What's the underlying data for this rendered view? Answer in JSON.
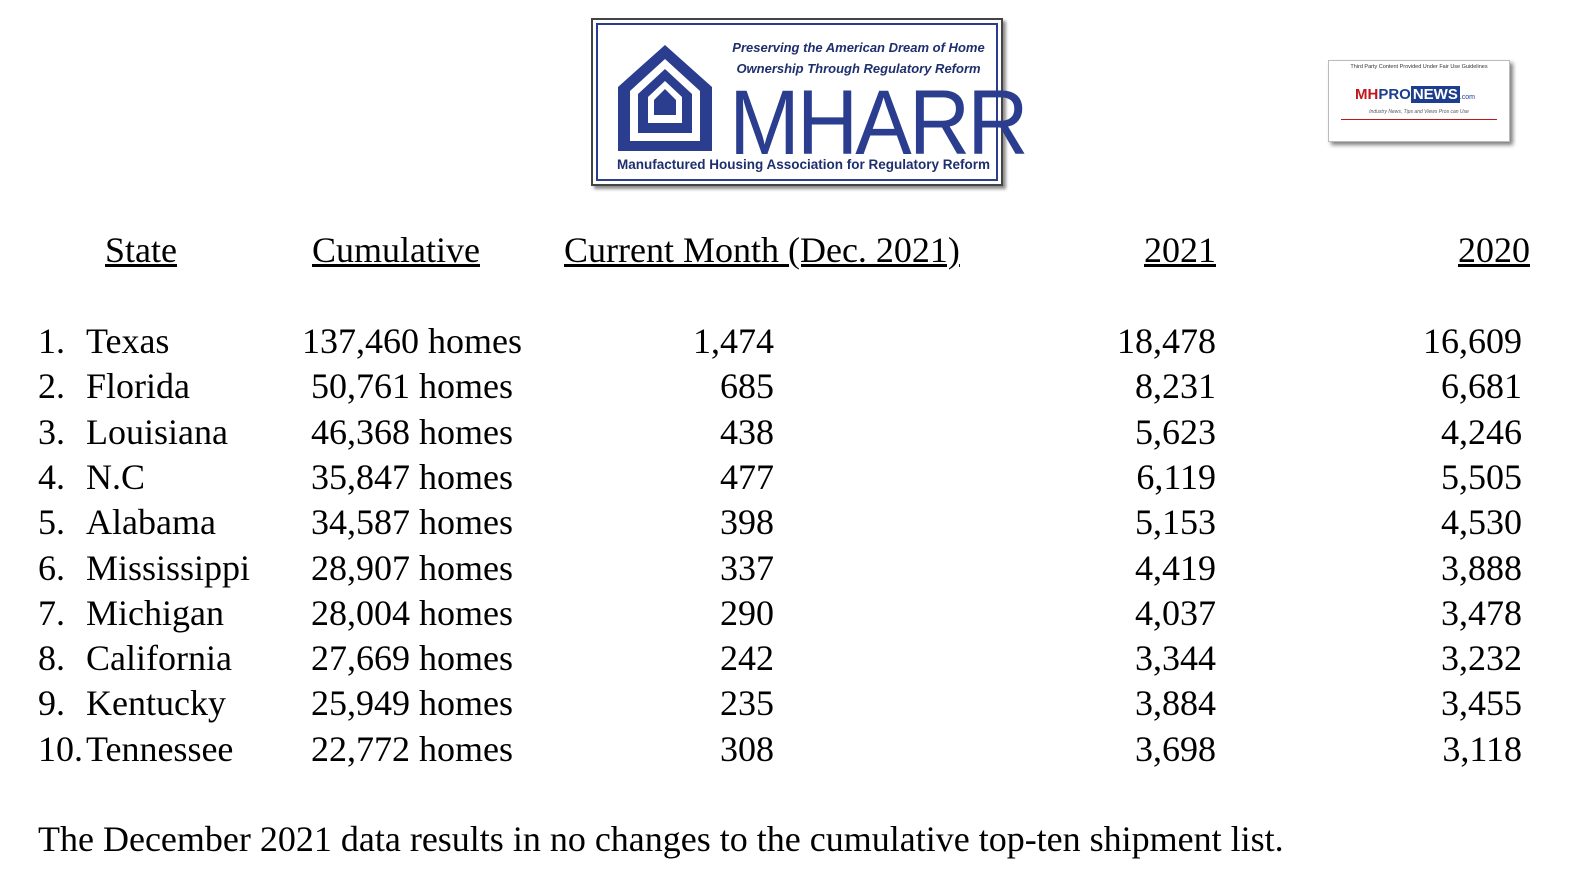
{
  "logo": {
    "tagline": "Preserving the American Dream of Home\nOwnership Through Regulatory Reform",
    "wordmark": "MHARR",
    "full_name": "Manufactured Housing Association for Regulatory Reform",
    "brand_color": "#2a3d8f",
    "icon": "house-icon"
  },
  "badge": {
    "fair_use": "Third Party Content Provided Under Fair Use Guidelines",
    "logo_mh": "MH",
    "logo_pro": "PRO",
    "logo_news": "NEWS",
    "logo_com": ".com",
    "subtitle": "Industry News, Tips and Views Pros can Use"
  },
  "headers": {
    "state": "State",
    "cumulative": "Cumulative",
    "current_month": "Current Month (Dec. 2021)",
    "y2021": "2021",
    "y2020": "2020"
  },
  "rows": [
    {
      "rank": "1.",
      "state": "Texas",
      "cumulative": "137,460 homes",
      "current": "1,474",
      "y2021": "18,478",
      "y2020": "16,609"
    },
    {
      "rank": "2.",
      "state": "Florida",
      "cumulative": "50,761 homes",
      "current": "685",
      "y2021": "8,231",
      "y2020": "6,681"
    },
    {
      "rank": "3.",
      "state": "Louisiana",
      "cumulative": "46,368 homes",
      "current": "438",
      "y2021": "5,623",
      "y2020": "4,246"
    },
    {
      "rank": "4.",
      "state": "N.C",
      "cumulative": "35,847 homes",
      "current": "477",
      "y2021": "6,119",
      "y2020": "5,505"
    },
    {
      "rank": "5.",
      "state": "Alabama",
      "cumulative": "34,587 homes",
      "current": "398",
      "y2021": "5,153",
      "y2020": "4,530"
    },
    {
      "rank": "6.",
      "state": "Mississippi",
      "cumulative": "28,907 homes",
      "current": "337",
      "y2021": "4,419",
      "y2020": "3,888"
    },
    {
      "rank": "7.",
      "state": "Michigan",
      "cumulative": "28,004 homes",
      "current": "290",
      "y2021": "4,037",
      "y2020": "3,478"
    },
    {
      "rank": "8.",
      "state": "California",
      "cumulative": "27,669 homes",
      "current": "242",
      "y2021": "3,344",
      "y2020": "3,232"
    },
    {
      "rank": "9.",
      "state": "Kentucky",
      "cumulative": "25,949 homes",
      "current": "235",
      "y2021": "3,884",
      "y2020": "3,455"
    },
    {
      "rank": "10.",
      "state": "Tennessee",
      "cumulative": "22,772 homes",
      "current": "308",
      "y2021": "3,698",
      "y2020": "3,118"
    }
  ],
  "footnote": "The December 2021 data results in no changes to the cumulative top-ten shipment list."
}
